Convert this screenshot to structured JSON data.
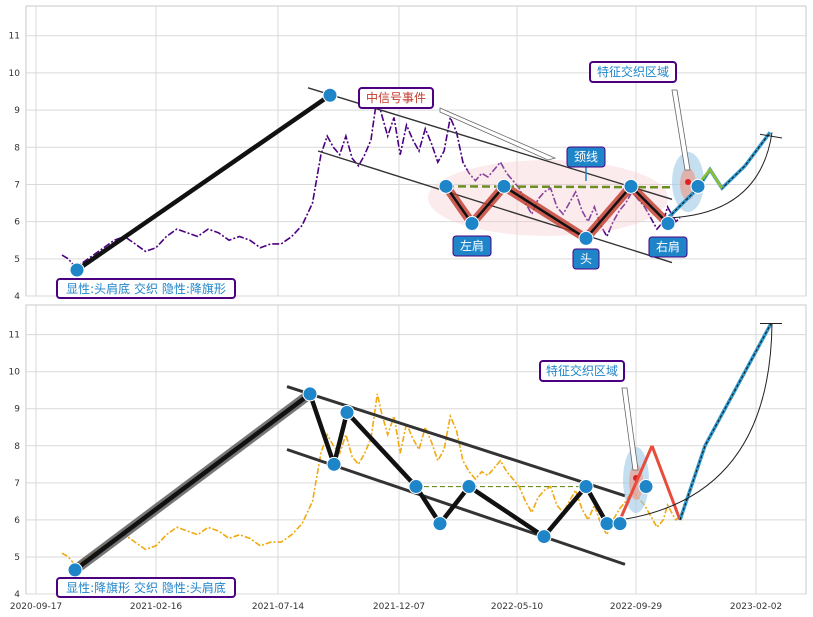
{
  "chart_data": [
    {
      "type": "line",
      "panel": "top",
      "ylim": [
        4,
        11.8
      ],
      "y_ticks": [
        4,
        5,
        6,
        7,
        8,
        9,
        10,
        11
      ],
      "grid": true,
      "price_color": "#4b0082",
      "price_series": [
        [
          0,
          5.1
        ],
        [
          3,
          5.0
        ],
        [
          6,
          4.8
        ],
        [
          10,
          4.9
        ],
        [
          15,
          5.1
        ],
        [
          20,
          5.3
        ],
        [
          25,
          5.5
        ],
        [
          30,
          5.6
        ],
        [
          35,
          5.4
        ],
        [
          40,
          5.2
        ],
        [
          45,
          5.3
        ],
        [
          50,
          5.6
        ],
        [
          55,
          5.8
        ],
        [
          60,
          5.7
        ],
        [
          65,
          5.6
        ],
        [
          70,
          5.8
        ],
        [
          75,
          5.7
        ],
        [
          80,
          5.5
        ],
        [
          85,
          5.6
        ],
        [
          90,
          5.5
        ],
        [
          95,
          5.3
        ],
        [
          100,
          5.4
        ],
        [
          105,
          5.4
        ],
        [
          110,
          5.6
        ],
        [
          115,
          5.9
        ],
        [
          120,
          6.5
        ],
        [
          124,
          7.8
        ],
        [
          127,
          8.3
        ],
        [
          130,
          8.0
        ],
        [
          133,
          7.8
        ],
        [
          136,
          8.3
        ],
        [
          139,
          7.7
        ],
        [
          142,
          7.5
        ],
        [
          145,
          7.8
        ],
        [
          148,
          8.2
        ],
        [
          151,
          9.4
        ],
        [
          153,
          8.9
        ],
        [
          156,
          8.3
        ],
        [
          159,
          8.8
        ],
        [
          162,
          7.8
        ],
        [
          165,
          8.6
        ],
        [
          168,
          8.2
        ],
        [
          171,
          7.9
        ],
        [
          174,
          8.5
        ],
        [
          177,
          8.1
        ],
        [
          180,
          7.6
        ],
        [
          183,
          7.9
        ],
        [
          186,
          8.8
        ],
        [
          189,
          8.4
        ],
        [
          192,
          7.6
        ],
        [
          195,
          7.3
        ],
        [
          198,
          7.1
        ],
        [
          201,
          7.3
        ],
        [
          204,
          7.2
        ],
        [
          207,
          7.4
        ],
        [
          210,
          7.6
        ],
        [
          213,
          7.3
        ],
        [
          216,
          7.1
        ],
        [
          219,
          6.9
        ],
        [
          222,
          6.5
        ],
        [
          225,
          6.2
        ],
        [
          228,
          6.6
        ],
        [
          231,
          6.8
        ],
        [
          234,
          6.9
        ],
        [
          237,
          6.4
        ],
        [
          240,
          6.2
        ],
        [
          243,
          6.5
        ],
        [
          246,
          6.8
        ],
        [
          249,
          6.3
        ],
        [
          252,
          6.0
        ],
        [
          255,
          6.4
        ],
        [
          258,
          5.9
        ],
        [
          261,
          5.6
        ],
        [
          264,
          6.0
        ],
        [
          267,
          6.3
        ],
        [
          270,
          6.5
        ],
        [
          273,
          6.8
        ],
        [
          276,
          6.6
        ],
        [
          279,
          6.4
        ],
        [
          282,
          6.1
        ],
        [
          285,
          5.8
        ],
        [
          288,
          6.0
        ],
        [
          290,
          6.4
        ],
        [
          292,
          6.2
        ],
        [
          294,
          6.0
        ],
        [
          296,
          6.1
        ]
      ],
      "line_start_y": 4.7,
      "peak_y": 9.4,
      "channel_upper_start_y": 9.6,
      "channel_upper_end_y": 6.6,
      "channel_lower_start_y": 7.9,
      "channel_lower_end_y": 4.9,
      "hs_points": [
        [
          "left",
          6.95
        ],
        [
          "lshoulder",
          5.95
        ],
        [
          "mid1",
          6.95
        ],
        [
          "head",
          5.55
        ],
        [
          "mid2",
          6.95
        ],
        [
          "rshoulder",
          5.95
        ]
      ],
      "neckline_y": 6.95,
      "projection": [
        [
          0,
          6.1
        ],
        [
          1,
          6.9
        ],
        [
          2,
          7.4
        ],
        [
          3,
          6.9
        ],
        [
          4,
          7.5
        ],
        [
          5,
          8.4
        ]
      ],
      "labels": {
        "left_shoulder": "左肩",
        "head": "头",
        "right_shoulder": "右肩",
        "neckline": "颈线",
        "signal_event": "中信号事件",
        "feature_zone": "特征交织区域",
        "pattern": "显性:头肩底 交织 隐性:降旗形"
      }
    },
    {
      "type": "line",
      "panel": "bottom",
      "ylim": [
        4,
        11.8
      ],
      "y_ticks": [
        4,
        5,
        6,
        7,
        8,
        9,
        10,
        11
      ],
      "grid": true,
      "price_color": "#f0a90f",
      "price_series": [
        [
          0,
          5.1
        ],
        [
          3,
          5.0
        ],
        [
          6,
          4.8
        ],
        [
          10,
          4.9
        ],
        [
          15,
          5.1
        ],
        [
          20,
          5.3
        ],
        [
          25,
          5.5
        ],
        [
          30,
          5.6
        ],
        [
          35,
          5.4
        ],
        [
          40,
          5.2
        ],
        [
          45,
          5.3
        ],
        [
          50,
          5.6
        ],
        [
          55,
          5.8
        ],
        [
          60,
          5.7
        ],
        [
          65,
          5.6
        ],
        [
          70,
          5.8
        ],
        [
          75,
          5.7
        ],
        [
          80,
          5.5
        ],
        [
          85,
          5.6
        ],
        [
          90,
          5.5
        ],
        [
          95,
          5.3
        ],
        [
          100,
          5.4
        ],
        [
          105,
          5.4
        ],
        [
          110,
          5.6
        ],
        [
          115,
          5.9
        ],
        [
          120,
          6.5
        ],
        [
          124,
          7.8
        ],
        [
          127,
          8.3
        ],
        [
          130,
          8.0
        ],
        [
          133,
          7.8
        ],
        [
          136,
          8.3
        ],
        [
          139,
          7.7
        ],
        [
          142,
          7.5
        ],
        [
          145,
          7.8
        ],
        [
          148,
          8.2
        ],
        [
          151,
          9.4
        ],
        [
          153,
          8.9
        ],
        [
          156,
          8.3
        ],
        [
          159,
          8.8
        ],
        [
          162,
          7.8
        ],
        [
          165,
          8.6
        ],
        [
          168,
          8.2
        ],
        [
          171,
          7.9
        ],
        [
          174,
          8.5
        ],
        [
          177,
          8.1
        ],
        [
          180,
          7.6
        ],
        [
          183,
          7.9
        ],
        [
          186,
          8.8
        ],
        [
          189,
          8.4
        ],
        [
          192,
          7.6
        ],
        [
          195,
          7.3
        ],
        [
          198,
          7.1
        ],
        [
          201,
          7.3
        ],
        [
          204,
          7.2
        ],
        [
          207,
          7.4
        ],
        [
          210,
          7.6
        ],
        [
          213,
          7.3
        ],
        [
          216,
          7.1
        ],
        [
          219,
          6.9
        ],
        [
          222,
          6.5
        ],
        [
          225,
          6.2
        ],
        [
          228,
          6.6
        ],
        [
          231,
          6.8
        ],
        [
          234,
          6.9
        ],
        [
          237,
          6.4
        ],
        [
          240,
          6.2
        ],
        [
          243,
          6.5
        ],
        [
          246,
          6.8
        ],
        [
          249,
          6.3
        ],
        [
          252,
          6.0
        ],
        [
          255,
          6.4
        ],
        [
          258,
          5.9
        ],
        [
          261,
          5.6
        ],
        [
          264,
          6.0
        ],
        [
          267,
          6.3
        ],
        [
          270,
          6.5
        ],
        [
          273,
          6.8
        ],
        [
          276,
          6.6
        ],
        [
          279,
          6.4
        ],
        [
          282,
          6.1
        ],
        [
          285,
          5.8
        ],
        [
          288,
          6.0
        ],
        [
          290,
          6.4
        ],
        [
          292,
          6.2
        ],
        [
          294,
          6.0
        ],
        [
          296,
          6.1
        ]
      ],
      "zigzag": [
        4.65,
        9.4,
        7.5,
        8.9,
        6.9,
        5.9,
        6.9,
        5.55,
        6.9,
        5.9,
        5.9
      ],
      "channel_upper_start_y": 9.6,
      "channel_upper_end_y": 6.65,
      "channel_lower_start_y": 7.9,
      "channel_lower_end_y": 4.8,
      "projection": [
        [
          0,
          6.0
        ],
        [
          1,
          8.0
        ],
        [
          2,
          6.0
        ],
        [
          3,
          8.0
        ],
        [
          4,
          11.3
        ]
      ],
      "labels": {
        "feature_zone": "特征交织区域",
        "pattern": "显性:降旗形 交织 隐性:头肩底"
      }
    }
  ],
  "x_ticks": [
    "2020-09-17",
    "2021-02-16",
    "2021-07-14",
    "2021-12-07",
    "2022-05-10",
    "2022-09-29",
    "2023-02-02"
  ],
  "colors": {
    "marker": "#1f85c9",
    "red_line": "#c0392b",
    "neckline": "#6b8e23",
    "projection": "#3399cc",
    "label_border": "#4b0082",
    "red_text": "#c0392b",
    "cyan_text": "#1f85c9"
  }
}
